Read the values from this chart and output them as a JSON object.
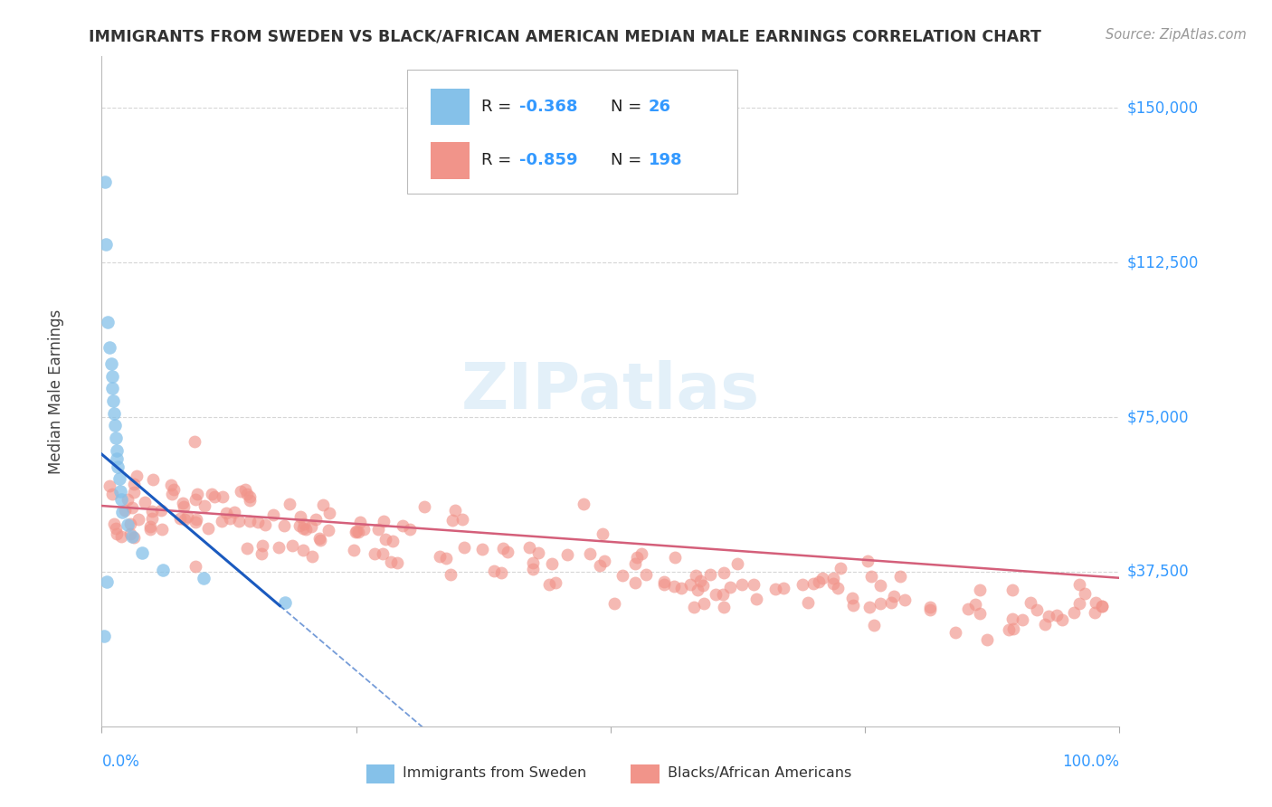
{
  "title": "IMMIGRANTS FROM SWEDEN VS BLACK/AFRICAN AMERICAN MEDIAN MALE EARNINGS CORRELATION CHART",
  "source": "Source: ZipAtlas.com",
  "ylabel": "Median Male Earnings",
  "ytick_values": [
    37500,
    75000,
    112500,
    150000
  ],
  "ytick_labels": [
    "$37,500",
    "$75,000",
    "$112,500",
    "$150,000"
  ],
  "xlim": [
    0,
    1.0
  ],
  "ylim": [
    0,
    162500
  ],
  "legend_r1": "R = -0.368",
  "legend_n1": "N =  26",
  "legend_r2": "R = -0.859",
  "legend_n2": "N = 198",
  "blue_color": "#85c1e9",
  "pink_color": "#f1948a",
  "regression_blue_color": "#1a5abf",
  "regression_pink_color": "#d45f7a",
  "watermark_text": "ZIPatlas",
  "title_color": "#333333",
  "source_color": "#999999",
  "axis_label_color": "#444444",
  "tick_label_color": "#3399ff",
  "legend_r_color": "#222222",
  "legend_n_color": "#3399ff",
  "grid_color": "#cccccc",
  "bottom_legend_color": "#333333"
}
